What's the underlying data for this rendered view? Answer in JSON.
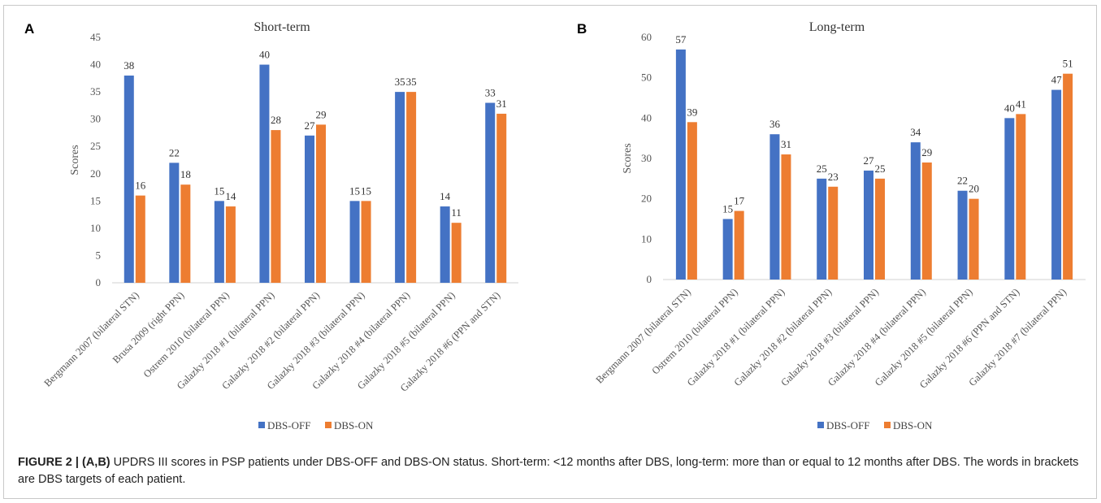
{
  "colors": {
    "off": "#4472C4",
    "on": "#ED7D31"
  },
  "caption": {
    "label": "FIGURE 2 | (A,B)",
    "text": " UPDRS III scores in PSP patients under DBS-OFF and DBS-ON status. Short-term: <12 months after DBS, long-term: more than or equal to 12 months after DBS. The words in brackets are DBS targets of each patient."
  },
  "chart_data": [
    {
      "panel_label": "A",
      "type": "bar",
      "title": "Short-term",
      "ylabel": "Scores",
      "xlabel": "",
      "ylim": [
        0,
        45
      ],
      "yticks": [
        0,
        5,
        10,
        15,
        20,
        25,
        30,
        35,
        40,
        45
      ],
      "grid": false,
      "legend_position": "bottom",
      "categories": [
        "Bergmann 2007 (bilateral STN)",
        "Brusa 2009 (right PPN)",
        "Ostrem  2010 (bilateral PPN)",
        "Galazky 2018 #1 (bilateral PPN)",
        "Galazky 2018 #2 (bilateral PPN)",
        "Galazky 2018 #3 (bilateral PPN)",
        "Galazky 2018 #4 (bilateral PPN)",
        "Galazky 2018 #5 (bilateral PPN)",
        "Galazky 2018 #6 (PPN and STN)"
      ],
      "series": [
        {
          "name": "DBS-OFF",
          "values": [
            38,
            22,
            15,
            40,
            27,
            15,
            35,
            14,
            33
          ]
        },
        {
          "name": "DBS-ON",
          "values": [
            16,
            18,
            14,
            28,
            29,
            15,
            35,
            11,
            31
          ]
        }
      ]
    },
    {
      "panel_label": "B",
      "type": "bar",
      "title": "Long-term",
      "ylabel": "Scores",
      "xlabel": "",
      "ylim": [
        0,
        60
      ],
      "yticks": [
        0,
        10,
        20,
        30,
        40,
        50,
        60
      ],
      "grid": false,
      "legend_position": "bottom",
      "categories": [
        "Bergmann 2007 (bilateral STN)",
        "Ostrem  2010 (bilateral PPN)",
        "Galazky 2018 #1 (bilateral PPN)",
        "Galazky 2018 #2 (bilateral PPN)",
        "Galazky 2018 #3 (bilateral PPN)",
        "Galazky 2018 #4 (bilateral PPN)",
        "Galazky 2018 #5 (bilateral PPN)",
        "Galazky 2018 #6 (PPN and STN)",
        "Galazky 2018 #7 (bilateral PPN)"
      ],
      "series": [
        {
          "name": "DBS-OFF",
          "values": [
            57,
            15,
            36,
            25,
            27,
            34,
            22,
            40,
            47
          ]
        },
        {
          "name": "DBS-ON",
          "values": [
            39,
            17,
            31,
            23,
            25,
            29,
            20,
            41,
            51
          ]
        }
      ]
    }
  ]
}
